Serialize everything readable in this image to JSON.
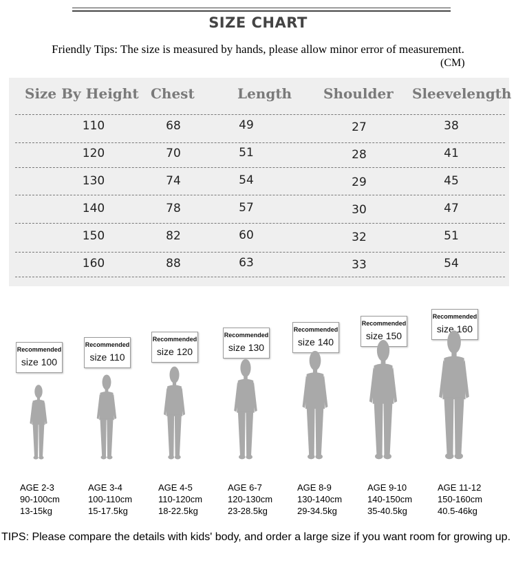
{
  "header": {
    "title": "SIZE CHART",
    "tips": "Friendly Tips: The size is measured by hands, please allow minor error of measurement.",
    "unit": "(CM)"
  },
  "table": {
    "columns": [
      "Size By Height",
      "Chest",
      "Length",
      "Shoulder",
      "Sleevelength"
    ],
    "rows": [
      [
        "110",
        "68",
        "49",
        "27",
        "38"
      ],
      [
        "120",
        "70",
        "51",
        "28",
        "41"
      ],
      [
        "130",
        "74",
        "54",
        "29",
        "45"
      ],
      [
        "140",
        "78",
        "57",
        "30",
        "47"
      ],
      [
        "150",
        "82",
        "60",
        "32",
        "51"
      ],
      [
        "160",
        "88",
        "63",
        "33",
        "54"
      ]
    ]
  },
  "kids": [
    {
      "recommended": "Recommended",
      "size": "size 100",
      "age": "AGE 2-3",
      "height": "90-100cm",
      "weight": "13-15kg"
    },
    {
      "recommended": "Recommended",
      "size": "size 110",
      "age": "AGE 3-4",
      "height": "100-110cm",
      "weight": "15-17.5kg"
    },
    {
      "recommended": "Recommended",
      "size": "size 120",
      "age": "AGE 4-5",
      "height": "110-120cm",
      "weight": "18-22.5kg"
    },
    {
      "recommended": "Recommended",
      "size": "size 130",
      "age": "AGE 6-7",
      "height": "120-130cm",
      "weight": "23-28.5kg"
    },
    {
      "recommended": "Recommended",
      "size": "size 140",
      "age": "AGE 8-9",
      "height": "130-140cm",
      "weight": "29-34.5kg"
    },
    {
      "recommended": "Recommended",
      "size": "size 150",
      "age": "AGE 9-10",
      "height": "140-150cm",
      "weight": "35-40.5kg"
    },
    {
      "recommended": "Recommended",
      "size": "size 160",
      "age": "AGE 11-12",
      "height": "150-160cm",
      "weight": "40.5-46kg"
    }
  ],
  "footer": {
    "tips": "TIPS: Please compare the details with kids' body, and order a large size if you want room for growing up."
  },
  "colors": {
    "panel": "#efefef",
    "header_text": "#7a7a7a",
    "silhouette": "#a9a9a9"
  },
  "icons": {
    "figure": "child-silhouette-icon"
  }
}
